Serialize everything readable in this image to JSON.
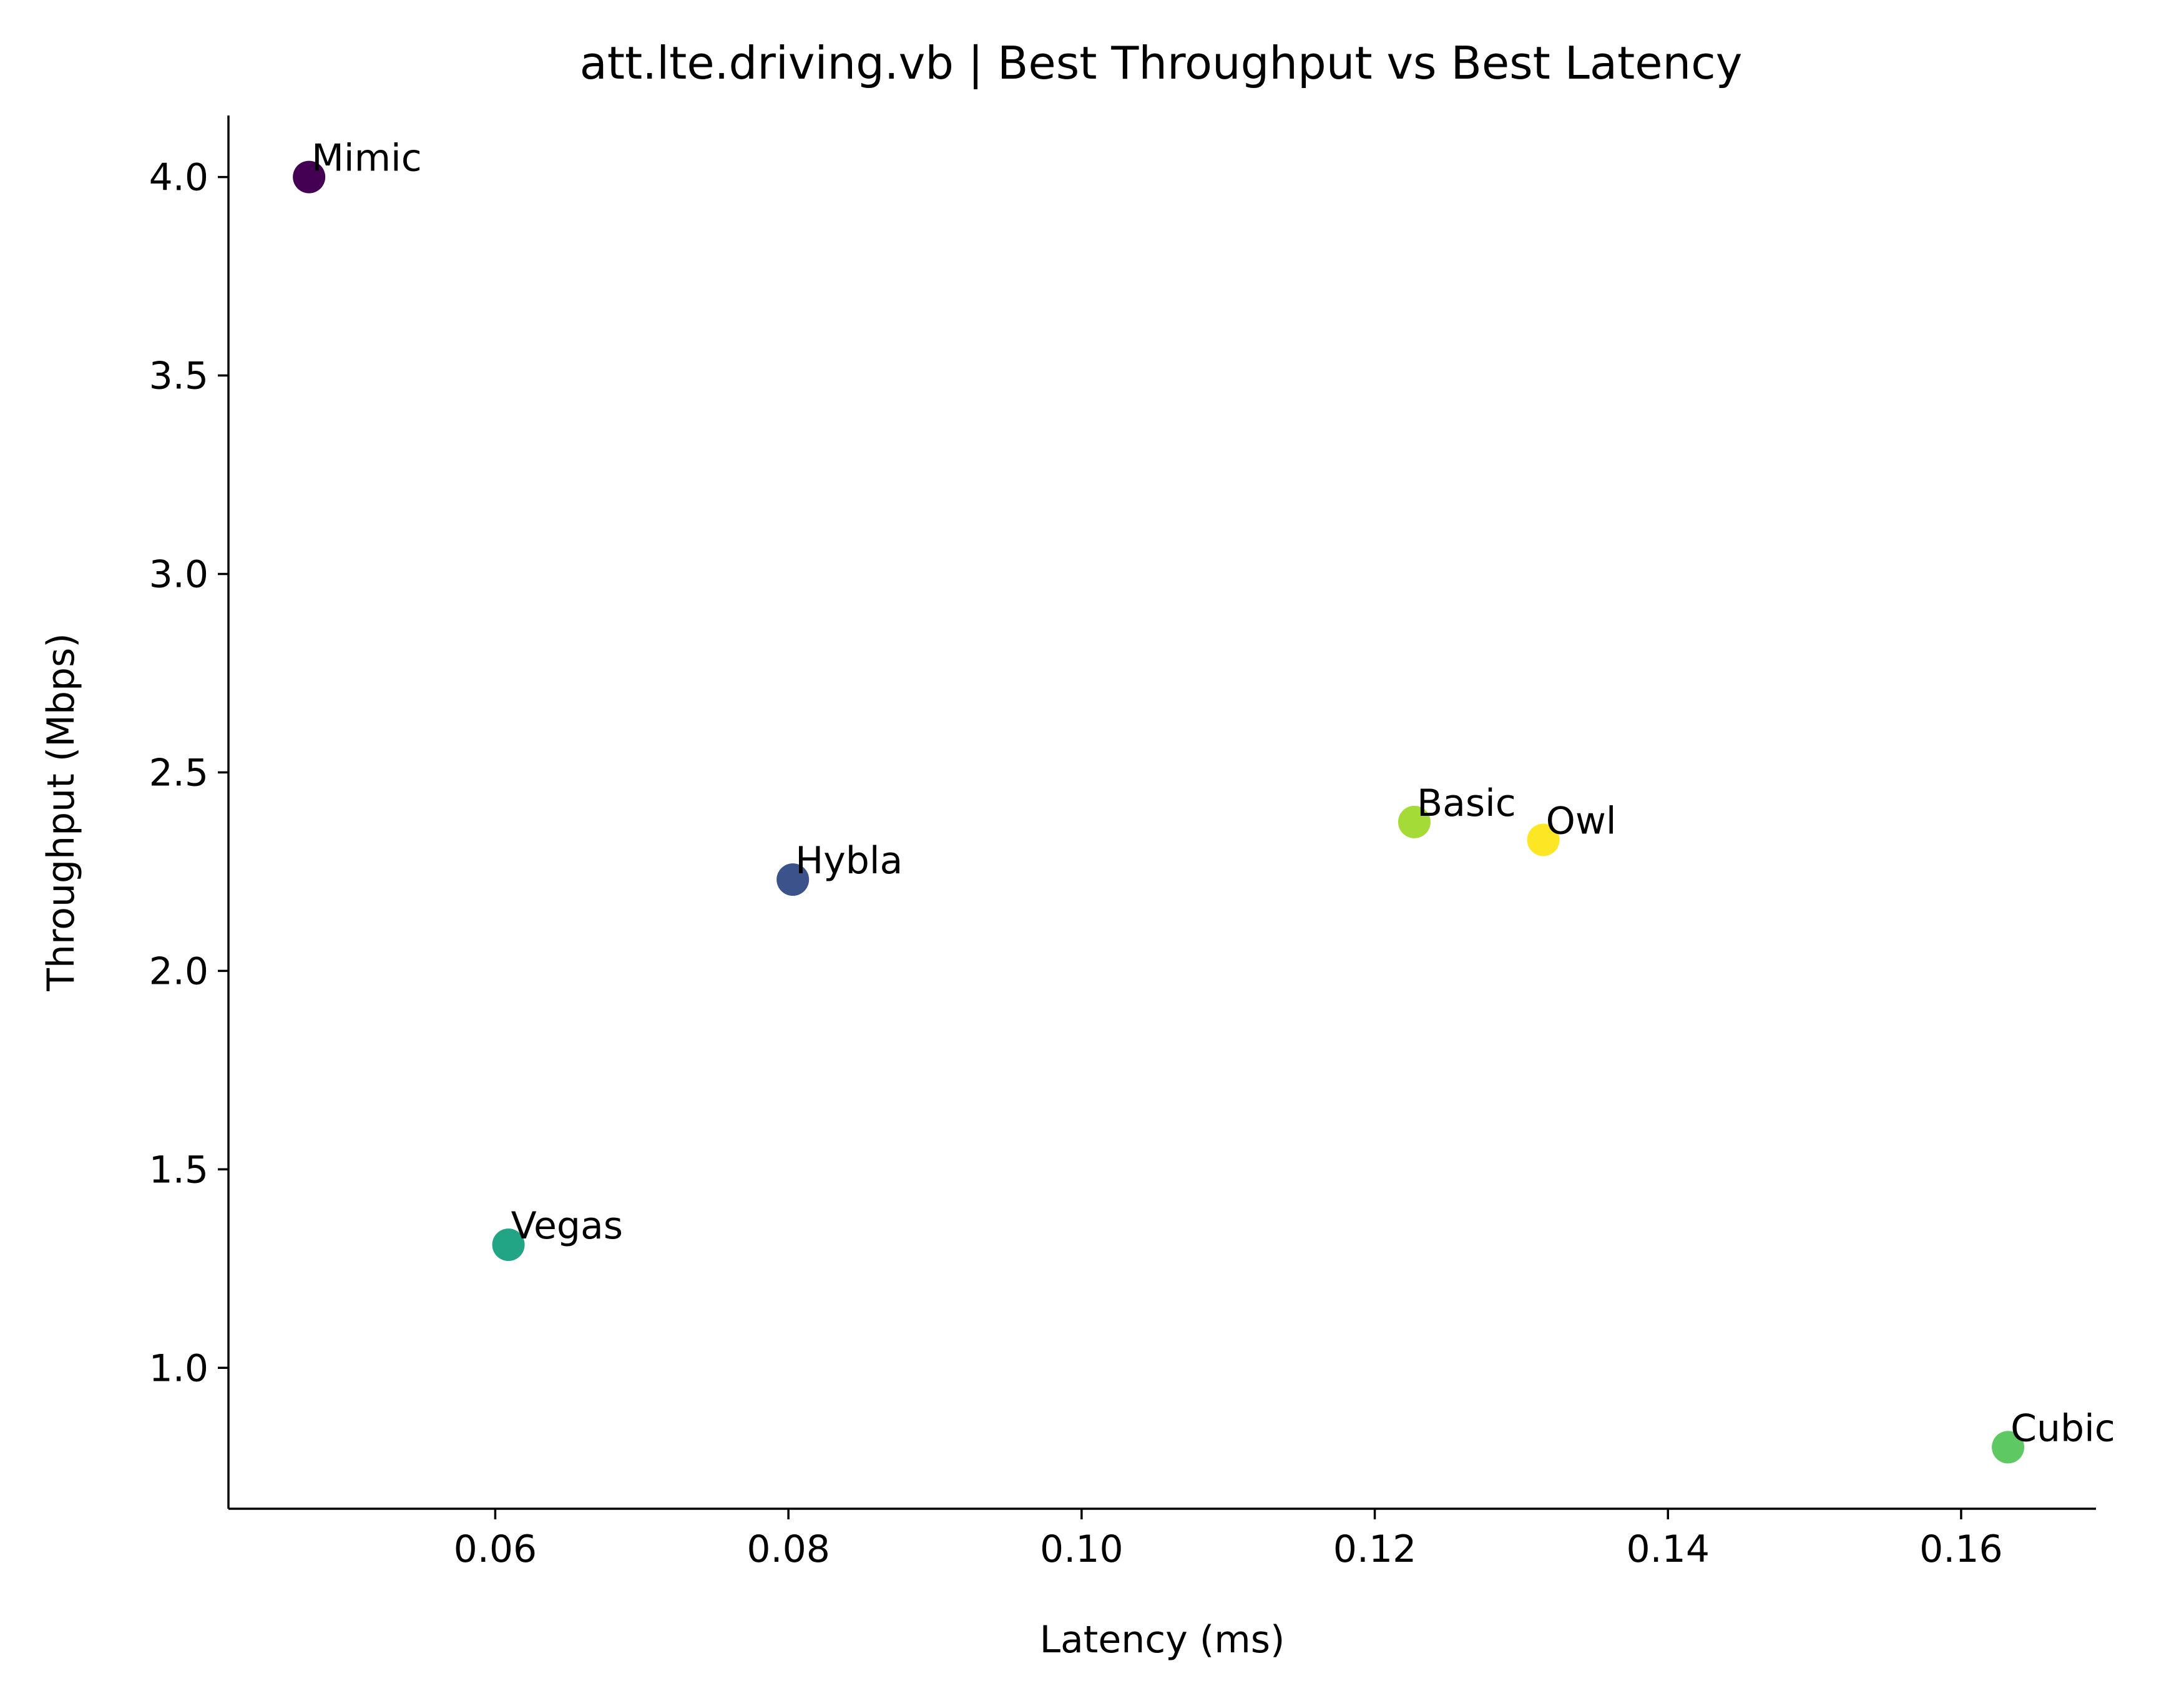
{
  "chart_data": {
    "type": "scatter",
    "title": "att.lte.driving.vb | Best Throughput vs Best Latency",
    "xlabel": "Latency (ms)",
    "ylabel": "Throughput (Mbps)",
    "xlim": [
      0.0418,
      0.1692
    ],
    "ylim": [
      0.645,
      4.155
    ],
    "xticks": [
      {
        "value": 0.06,
        "label": "0.06"
      },
      {
        "value": 0.08,
        "label": "0.08"
      },
      {
        "value": 0.1,
        "label": "0.10"
      },
      {
        "value": 0.12,
        "label": "0.12"
      },
      {
        "value": 0.14,
        "label": "0.14"
      },
      {
        "value": 0.16,
        "label": "0.16"
      }
    ],
    "yticks": [
      {
        "value": 1.0,
        "label": "1.0"
      },
      {
        "value": 1.5,
        "label": "1.5"
      },
      {
        "value": 2.0,
        "label": "2.0"
      },
      {
        "value": 2.5,
        "label": "2.5"
      },
      {
        "value": 3.0,
        "label": "3.0"
      },
      {
        "value": 3.5,
        "label": "3.5"
      },
      {
        "value": 4.0,
        "label": "4.0"
      }
    ],
    "grid": false,
    "legend": "none",
    "points": [
      {
        "label": "Mimic",
        "x": 0.0473,
        "y": 4.0,
        "color": "#440154"
      },
      {
        "label": "Hybla",
        "x": 0.0803,
        "y": 2.23,
        "color": "#3b528b"
      },
      {
        "label": "Vegas",
        "x": 0.0609,
        "y": 1.31,
        "color": "#21a585"
      },
      {
        "label": "Cubic",
        "x": 0.1632,
        "y": 0.8,
        "color": "#5ec962"
      },
      {
        "label": "Basic",
        "x": 0.1227,
        "y": 2.375,
        "color": "#a5db36"
      },
      {
        "label": "Owl",
        "x": 0.1315,
        "y": 2.33,
        "color": "#fde725"
      }
    ]
  }
}
